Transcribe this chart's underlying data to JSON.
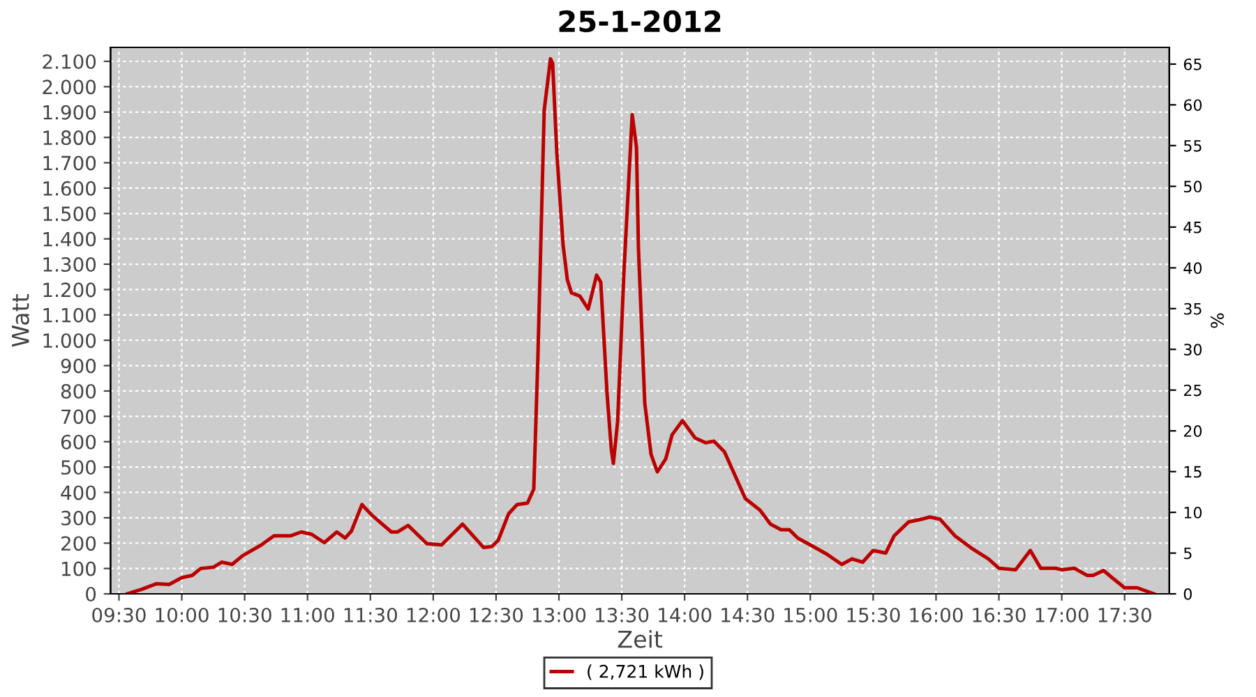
{
  "chart_data": {
    "type": "line",
    "title": "25-1-2012",
    "xlabel": "Zeit",
    "ylabel": "Watt",
    "y2label": "%",
    "x": [
      9.567,
      9.683,
      9.8,
      9.9,
      10.0,
      10.083,
      10.15,
      10.25,
      10.317,
      10.4,
      10.483,
      10.633,
      10.733,
      10.867,
      10.95,
      11.033,
      11.133,
      11.233,
      11.3,
      11.35,
      11.433,
      11.517,
      11.667,
      11.717,
      11.8,
      11.95,
      12.067,
      12.233,
      12.4,
      12.467,
      12.517,
      12.6,
      12.667,
      12.75,
      12.8,
      12.833,
      12.883,
      12.933,
      12.95,
      12.983,
      13.033,
      13.067,
      13.1,
      13.167,
      13.233,
      13.3,
      13.333,
      13.383,
      13.417,
      13.433,
      13.467,
      13.517,
      13.583,
      13.617,
      13.633,
      13.683,
      13.733,
      13.783,
      13.85,
      13.9,
      13.983,
      14.083,
      14.167,
      14.233,
      14.317,
      14.4,
      14.483,
      14.6,
      14.683,
      14.767,
      14.833,
      14.9,
      15.0,
      15.133,
      15.25,
      15.333,
      15.417,
      15.5,
      15.6,
      15.667,
      15.783,
      15.883,
      15.95,
      16.033,
      16.15,
      16.283,
      16.417,
      16.5,
      16.633,
      16.75,
      16.833,
      16.95,
      17.0,
      17.1,
      17.2,
      17.25,
      17.333,
      17.4,
      17.5,
      17.6,
      17.733
    ],
    "series": [
      {
        "name": "( 2,721 kWh )",
        "color": "#bb0000",
        "values": [
          0,
          18,
          40,
          37,
          64,
          73,
          100,
          105,
          125,
          116,
          150,
          193,
          229,
          229,
          244,
          235,
          202,
          244,
          220,
          248,
          352,
          308,
          244,
          244,
          270,
          198,
          193,
          275,
          183,
          187,
          211,
          316,
          352,
          358,
          413,
          936,
          1908,
          2110,
          2092,
          1743,
          1376,
          1239,
          1187,
          1174,
          1123,
          1257,
          1229,
          789,
          569,
          514,
          679,
          1266,
          1890,
          1761,
          1358,
          752,
          550,
          481,
          532,
          627,
          683,
          615,
          596,
          602,
          560,
          468,
          376,
          330,
          275,
          253,
          253,
          220,
          193,
          156,
          116,
          138,
          125,
          171,
          161,
          229,
          284,
          294,
          303,
          294,
          229,
          180,
          138,
          101,
          95,
          171,
          101,
          101,
          95,
          101,
          73,
          73,
          92,
          64,
          24,
          24,
          0
        ]
      }
    ],
    "xlim": [
      9.433,
      17.856
    ],
    "xticks": [
      {
        "value": 9.5,
        "label": "09:30"
      },
      {
        "value": 10.0,
        "label": "10:00"
      },
      {
        "value": 10.5,
        "label": "10:30"
      },
      {
        "value": 11.0,
        "label": "11:00"
      },
      {
        "value": 11.5,
        "label": "11:30"
      },
      {
        "value": 12.0,
        "label": "12:00"
      },
      {
        "value": 12.5,
        "label": "12:30"
      },
      {
        "value": 13.0,
        "label": "13:00"
      },
      {
        "value": 13.5,
        "label": "13:30"
      },
      {
        "value": 14.0,
        "label": "14:00"
      },
      {
        "value": 14.5,
        "label": "14:30"
      },
      {
        "value": 15.0,
        "label": "15:00"
      },
      {
        "value": 15.5,
        "label": "15:30"
      },
      {
        "value": 16.0,
        "label": "16:00"
      },
      {
        "value": 16.5,
        "label": "16:30"
      },
      {
        "value": 17.0,
        "label": "17:00"
      },
      {
        "value": 17.5,
        "label": "17:30"
      }
    ],
    "ylim": [
      0,
      2155
    ],
    "yticks": [
      0,
      100,
      200,
      300,
      400,
      500,
      600,
      700,
      800,
      900,
      {
        "value": 1000,
        "label": "1.000"
      },
      {
        "value": 1100,
        "label": "1.100"
      },
      {
        "value": 1200,
        "label": "1.200"
      },
      {
        "value": 1300,
        "label": "1.300"
      },
      {
        "value": 1400,
        "label": "1.400"
      },
      {
        "value": 1500,
        "label": "1.500"
      },
      {
        "value": 1600,
        "label": "1.600"
      },
      {
        "value": 1700,
        "label": "1.700"
      },
      {
        "value": 1800,
        "label": "1.800"
      },
      {
        "value": 1900,
        "label": "1.900"
      },
      {
        "value": 2000,
        "label": "2.000"
      },
      {
        "value": 2100,
        "label": "2.100"
      }
    ],
    "y2lim": [
      0,
      67.05
    ],
    "y2ticks": [
      0,
      5,
      10,
      15,
      20,
      25,
      30,
      35,
      40,
      45,
      50,
      55,
      60,
      65
    ],
    "grid": true,
    "legend": "bottom",
    "marker": "none",
    "line_style": "solid"
  }
}
